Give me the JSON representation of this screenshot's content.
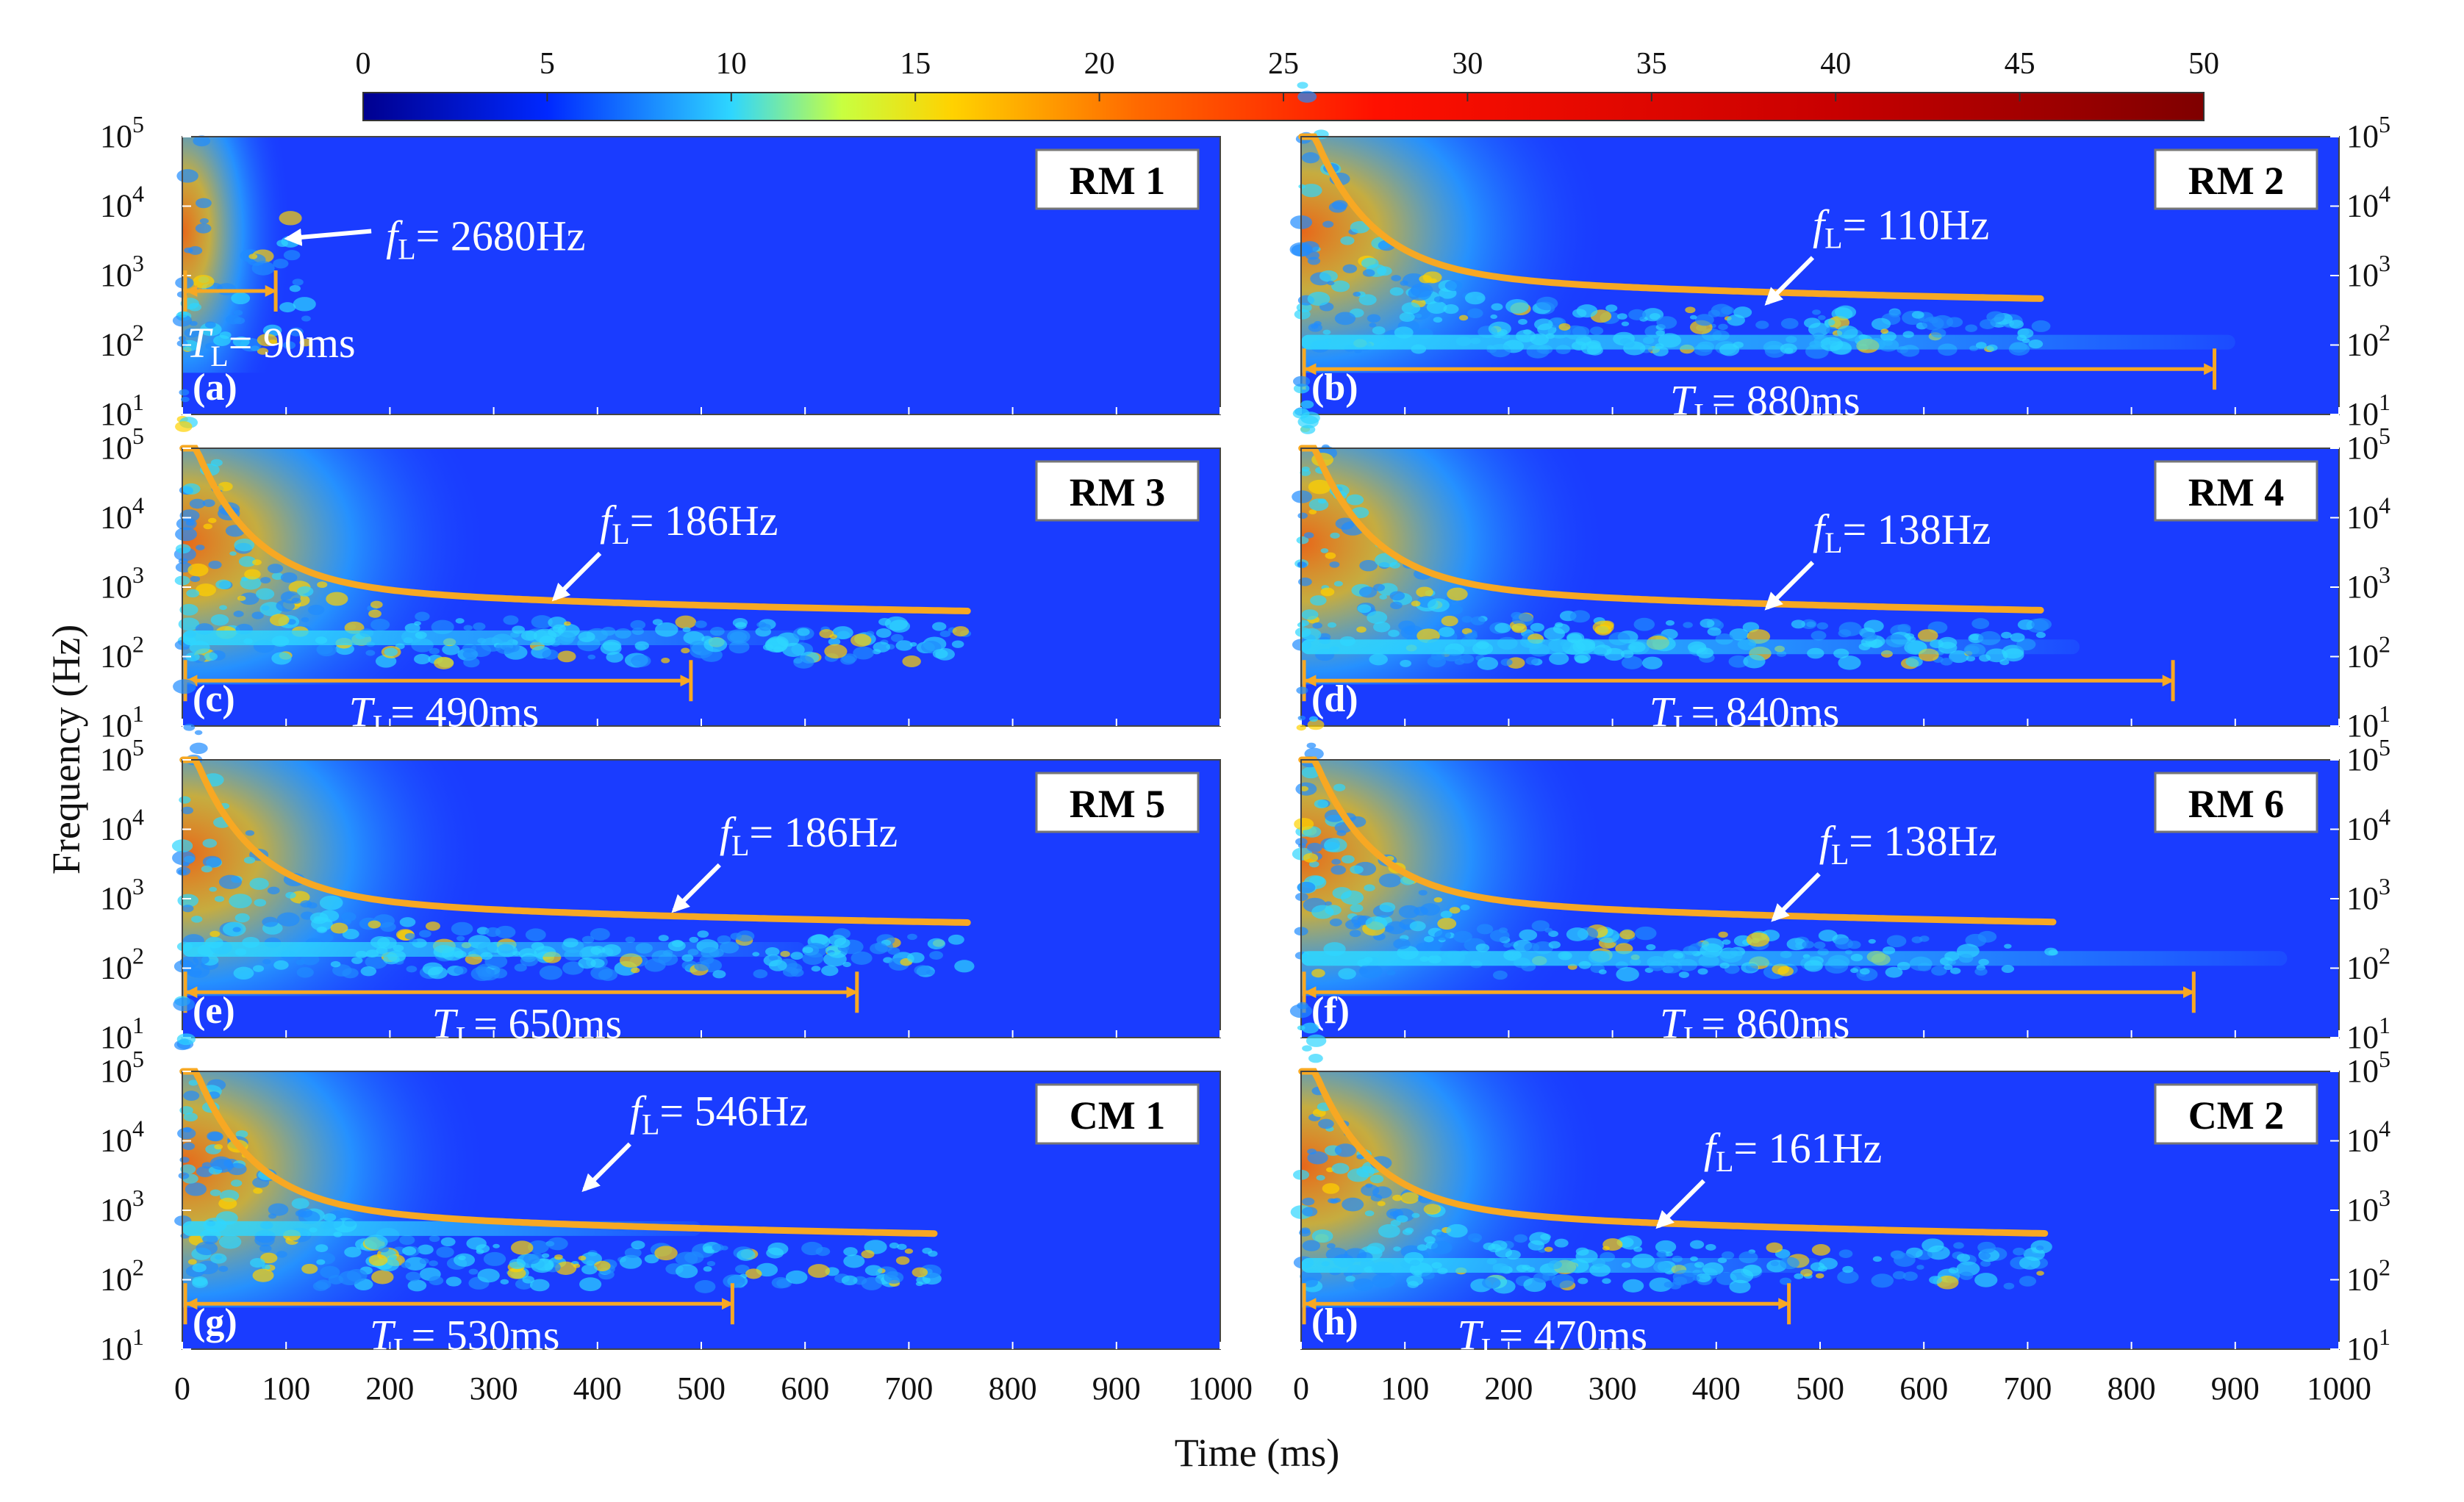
{
  "chart_data": {
    "type": "heatmap",
    "colorbar": {
      "ticks": [
        "0",
        "5",
        "10",
        "15",
        "20",
        "25",
        "30",
        "35",
        "40",
        "45",
        "50"
      ],
      "range": [
        0,
        50
      ],
      "colormap": "jet"
    },
    "xlabel": "Time (ms)",
    "ylabel": "Frequency (Hz)",
    "xlim": [
      0,
      1000
    ],
    "x_ticks": [
      "0",
      "100",
      "200",
      "300",
      "400",
      "500",
      "600",
      "700",
      "800",
      "900",
      "1000"
    ],
    "y_ticks": [
      "10",
      "10",
      "10",
      "10",
      "10"
    ],
    "y_exponents": [
      "1",
      "2",
      "3",
      "4",
      "5"
    ],
    "ylim": [
      1,
      5
    ],
    "panels": [
      {
        "id": "RM 1",
        "tag": "(a)",
        "f_text": "2680Hz",
        "t_text": "90ms",
        "t_ms": 90,
        "f_hz": 2680,
        "curve": false,
        "curve_end": 0,
        "band": 0
      },
      {
        "id": "RM 2",
        "tag": "(b)",
        "f_text": "110Hz",
        "t_text": "880ms",
        "t_ms": 880,
        "f_hz": 110,
        "curve": true,
        "curve_end": 715,
        "band": 0.9
      },
      {
        "id": "RM 3",
        "tag": "(c)",
        "f_text": "186Hz",
        "t_text": "490ms",
        "t_ms": 490,
        "f_hz": 186,
        "curve": true,
        "curve_end": 760,
        "band": 0.6
      },
      {
        "id": "RM 4",
        "tag": "(d)",
        "f_text": "138Hz",
        "t_text": "840ms",
        "t_ms": 840,
        "f_hz": 138,
        "curve": true,
        "curve_end": 715,
        "band": 0.75
      },
      {
        "id": "RM 5",
        "tag": "(e)",
        "f_text": "186Hz",
        "t_text": "650ms",
        "t_ms": 650,
        "f_hz": 186,
        "curve": true,
        "curve_end": 760,
        "band": 0.6
      },
      {
        "id": "RM 6",
        "tag": "(f)",
        "f_text": "138Hz",
        "t_text": "860ms",
        "t_ms": 860,
        "f_hz": 138,
        "curve": true,
        "curve_end": 725,
        "band": 0.95
      },
      {
        "id": "CM 1",
        "tag": "(g)",
        "f_text": "546Hz",
        "t_text": "530ms",
        "t_ms": 530,
        "f_hz": 546,
        "curve": true,
        "curve_end": 725,
        "band": 0.5
      },
      {
        "id": "CM 2",
        "tag": "(h)",
        "f_text": "161Hz",
        "t_text": "470ms",
        "t_ms": 470,
        "f_hz": 161,
        "curve": true,
        "curve_end": 720,
        "band": 0.5
      }
    ],
    "annotation_symbols": {
      "f": "f",
      "t": "T",
      "sub": "L",
      "eq": "= "
    }
  }
}
